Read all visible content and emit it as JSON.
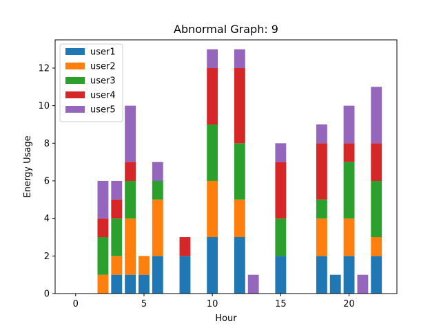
{
  "chart_data": {
    "type": "bar",
    "stacked": true,
    "title": "Abnormal Graph: 9",
    "xlabel": "Hour",
    "ylabel": "Energy Usage",
    "xlim": [
      -1.5,
      23.5
    ],
    "ylim": [
      0,
      13.5
    ],
    "xticks": [
      0,
      5,
      10,
      15,
      20
    ],
    "yticks": [
      0,
      2,
      4,
      6,
      8,
      10,
      12
    ],
    "legend_position": "top-left",
    "x": [
      2,
      3,
      4,
      5,
      6,
      8,
      10,
      12,
      13,
      15,
      18,
      19,
      20,
      21,
      22
    ],
    "series": [
      {
        "name": "user1",
        "color": "#1f77b4",
        "values": [
          0,
          1,
          1,
          1,
          2,
          2,
          3,
          3,
          0,
          2,
          2,
          1,
          2,
          0,
          2
        ]
      },
      {
        "name": "user2",
        "color": "#ff7f0e",
        "values": [
          1,
          1,
          3,
          1,
          3,
          0,
          3,
          2,
          0,
          0,
          2,
          0,
          2,
          0,
          1
        ]
      },
      {
        "name": "user3",
        "color": "#2ca02c",
        "values": [
          2,
          2,
          2,
          0,
          1,
          0,
          3,
          3,
          0,
          2,
          1,
          0,
          3,
          0,
          3
        ]
      },
      {
        "name": "user4",
        "color": "#d62728",
        "values": [
          1,
          1,
          1,
          0,
          0,
          1,
          3,
          4,
          0,
          3,
          3,
          0,
          1,
          0,
          2
        ]
      },
      {
        "name": "user5",
        "color": "#9467bd",
        "values": [
          2,
          1,
          3,
          0,
          1,
          0,
          1,
          1,
          1,
          1,
          1,
          0,
          2,
          1,
          3
        ]
      }
    ]
  }
}
